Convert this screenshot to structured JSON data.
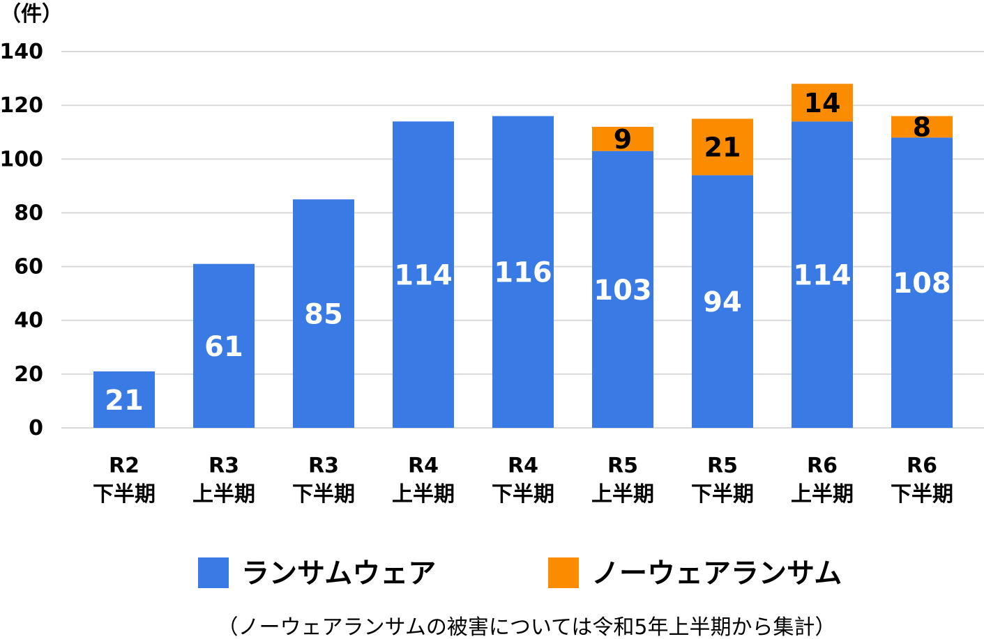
{
  "chart_data": {
    "type": "bar",
    "stacked": true,
    "unit_label": "（件）",
    "ylim": [
      0,
      140
    ],
    "yticks": [
      0,
      20,
      40,
      60,
      80,
      100,
      120,
      140
    ],
    "grid": true,
    "legend_position": "bottom",
    "categories": [
      {
        "line1": "R2",
        "line2": "下半期"
      },
      {
        "line1": "R3",
        "line2": "上半期"
      },
      {
        "line1": "R3",
        "line2": "下半期"
      },
      {
        "line1": "R4",
        "line2": "上半期"
      },
      {
        "line1": "R4",
        "line2": "下半期"
      },
      {
        "line1": "R5",
        "line2": "上半期"
      },
      {
        "line1": "R5",
        "line2": "下半期"
      },
      {
        "line1": "R6",
        "line2": "上半期"
      },
      {
        "line1": "R6",
        "line2": "下半期"
      }
    ],
    "series": [
      {
        "name": "ランサムウェア",
        "color": "#3a7ae4",
        "label_color": "#ffffff",
        "values": [
          21,
          61,
          85,
          114,
          116,
          103,
          94,
          114,
          108
        ]
      },
      {
        "name": "ノーウェアランサム",
        "color": "#fb8c00",
        "label_color": "#000000",
        "values": [
          null,
          null,
          null,
          null,
          null,
          9,
          21,
          14,
          8
        ]
      }
    ],
    "footnote": "（ノーウェアランサムの被害については令和5年上半期から集計）"
  }
}
